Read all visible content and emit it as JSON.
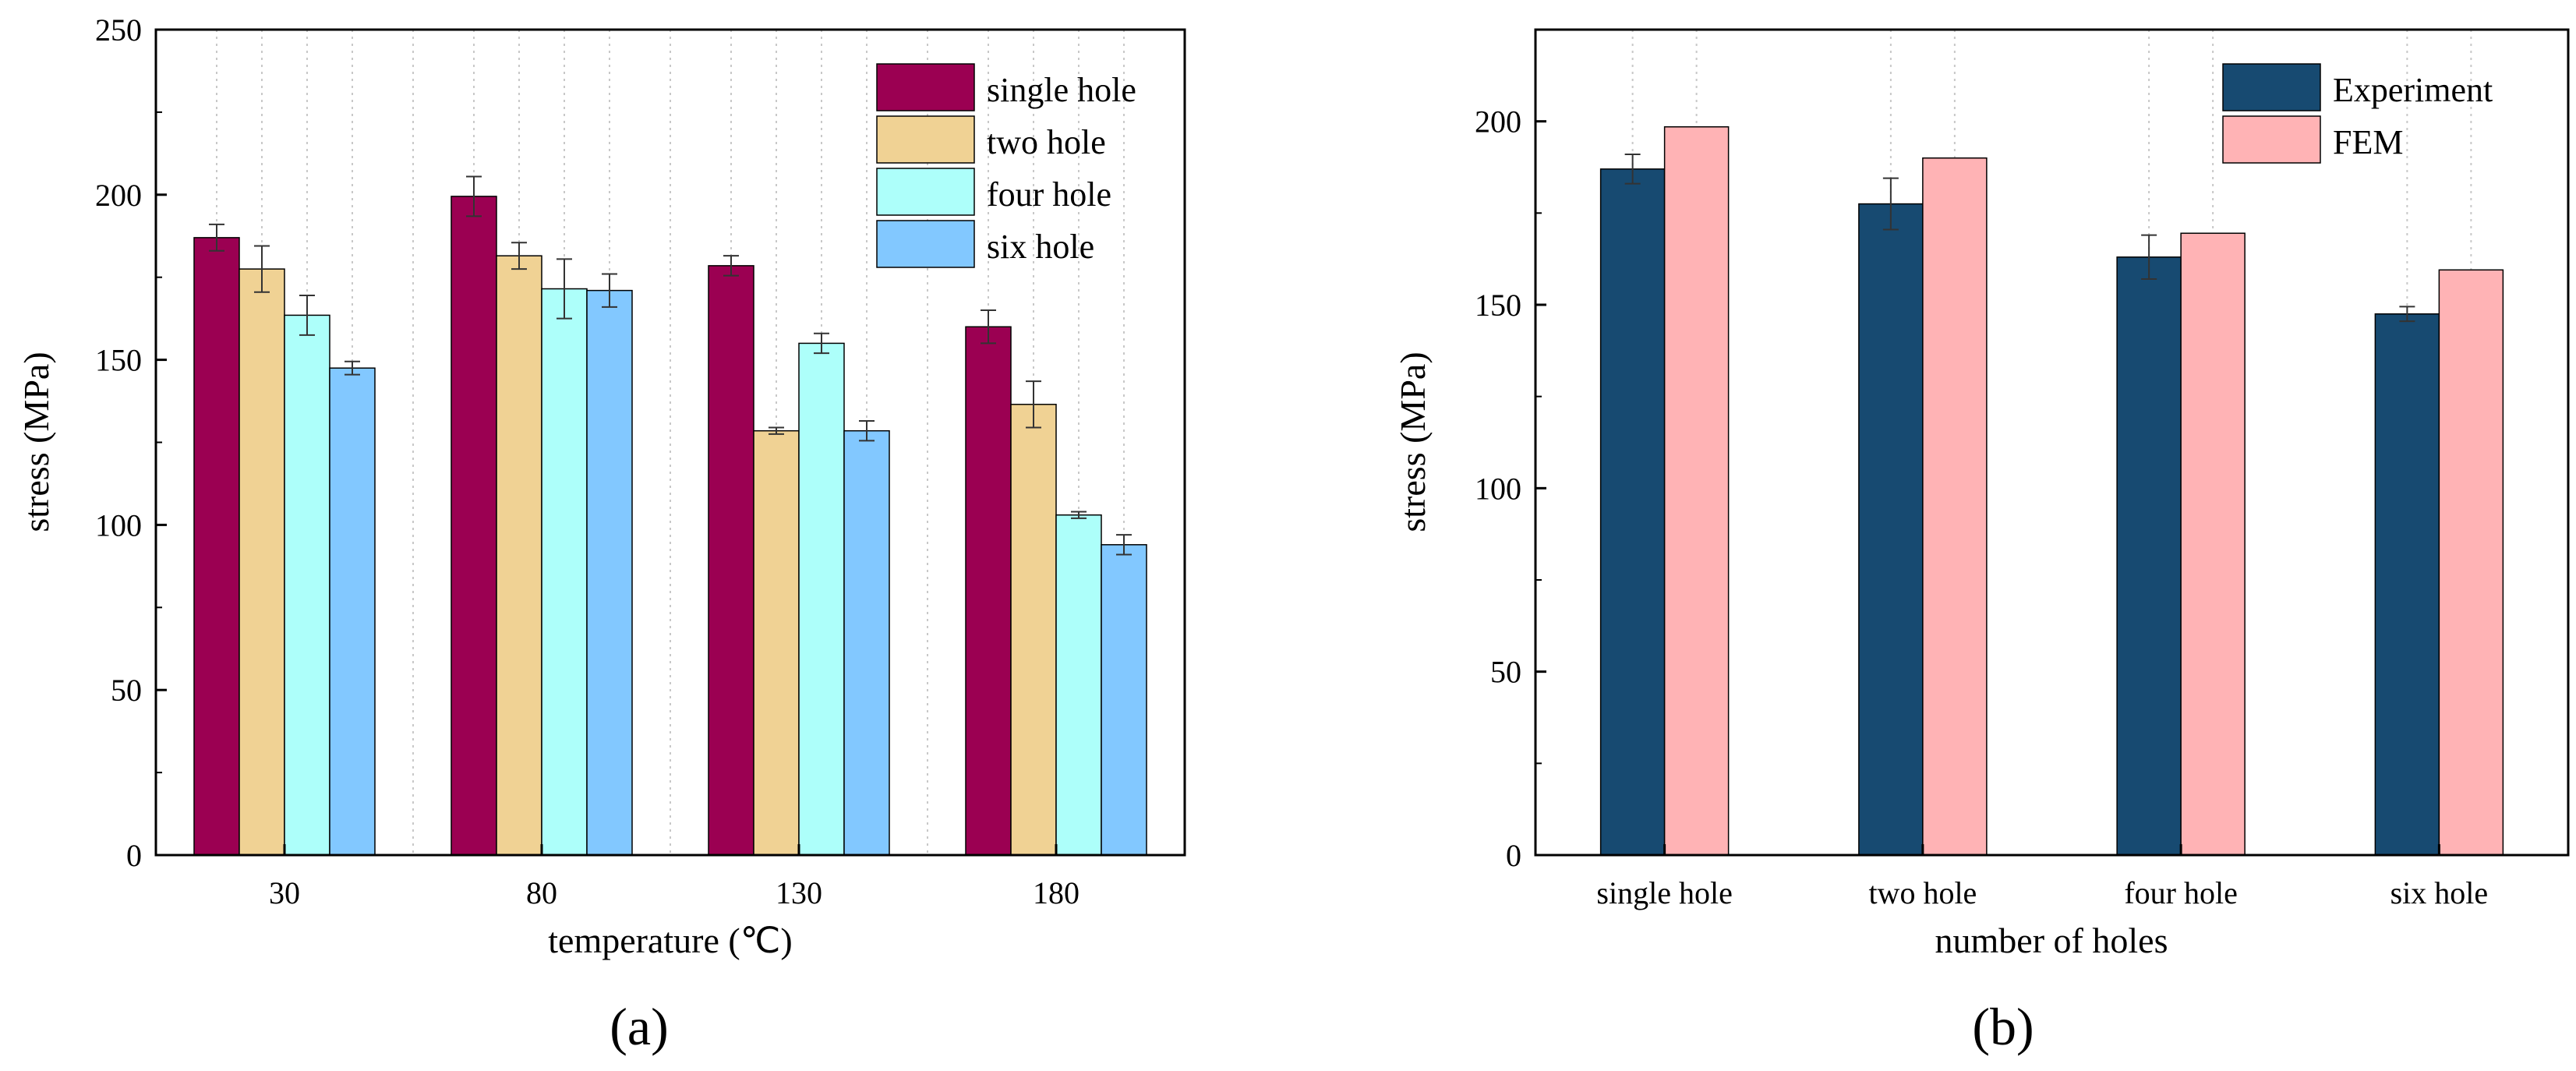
{
  "chart_data": [
    {
      "type": "bar",
      "panel_label": "(a)",
      "xlabel": "temperature (℃)",
      "ylabel": "stress (MPa)",
      "ylim": [
        0,
        250
      ],
      "yticks": [
        "0",
        "50",
        "100",
        "150",
        "200",
        "250"
      ],
      "categories": [
        "30",
        "80",
        "130",
        "180"
      ],
      "legend_position": "top-right",
      "series": [
        {
          "name": "single hole",
          "color": "#9b0052",
          "values": [
            187,
            199.5,
            178.5,
            160
          ],
          "errors": [
            4,
            6,
            3,
            5
          ]
        },
        {
          "name": "two hole",
          "color": "#f0d294",
          "values": [
            177.5,
            181.5,
            128.5,
            136.5
          ],
          "errors": [
            7,
            4,
            1,
            7
          ]
        },
        {
          "name": "four hole",
          "color": "#adfffa",
          "values": [
            163.5,
            171.5,
            155,
            103
          ],
          "errors": [
            6,
            9,
            3,
            1
          ]
        },
        {
          "name": "six hole",
          "color": "#82c8ff",
          "values": [
            147.5,
            171,
            128.5,
            94
          ],
          "errors": [
            2,
            5,
            3,
            3
          ]
        }
      ]
    },
    {
      "type": "bar",
      "panel_label": "(b)",
      "xlabel": "number of holes",
      "ylabel": "stress (MPa)",
      "ylim": [
        0,
        225
      ],
      "yticks": [
        "0",
        "50",
        "100",
        "150",
        "200"
      ],
      "categories": [
        "single hole",
        "two hole",
        "four hole",
        "six hole"
      ],
      "legend_position": "top-right",
      "series": [
        {
          "name": "Experiment",
          "color": "#174a71",
          "values": [
            187,
            177.5,
            163,
            147.5
          ],
          "errors": [
            4,
            7,
            6,
            2
          ]
        },
        {
          "name": "FEM",
          "color": "#ffb3b5",
          "values": [
            198.5,
            190,
            169.5,
            159.5
          ],
          "errors": [
            0,
            0,
            0,
            0
          ]
        }
      ]
    }
  ]
}
